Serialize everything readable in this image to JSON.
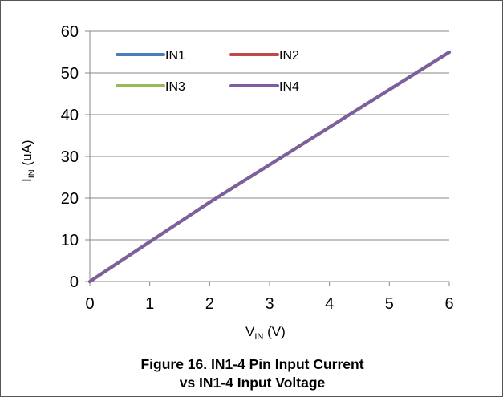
{
  "caption": {
    "line1": "Figure 16. IN1-4 Pin Input Current",
    "line2": "vs IN1-4 Input Voltage"
  },
  "chart_data": {
    "type": "line",
    "xlabel": {
      "main": "V",
      "sub": "IN",
      "unit": " (V)"
    },
    "ylabel": {
      "main": "I",
      "sub": "IN",
      "unit": " (uA)"
    },
    "xlim": [
      0,
      6
    ],
    "ylim": [
      0,
      60
    ],
    "xticks": [
      0,
      1,
      2,
      3,
      4,
      5,
      6
    ],
    "yticks": [
      0,
      10,
      20,
      30,
      40,
      50,
      60
    ],
    "grid": "y-major",
    "legend_position": "top-left",
    "series": [
      {
        "name": "IN1",
        "color": "#4a7ebb",
        "x": [
          0,
          1,
          2,
          3,
          4,
          5,
          6
        ],
        "y": [
          0,
          9.5,
          19,
          28,
          37,
          46,
          55
        ]
      },
      {
        "name": "IN2",
        "color": "#be4b48",
        "x": [
          0,
          1,
          2,
          3,
          4,
          5,
          6
        ],
        "y": [
          0,
          9.5,
          19,
          28,
          37,
          46,
          55
        ]
      },
      {
        "name": "IN3",
        "color": "#98b954",
        "x": [
          0,
          1,
          2,
          3,
          4,
          5,
          6
        ],
        "y": [
          0,
          9.5,
          19,
          28,
          37,
          46,
          55
        ]
      },
      {
        "name": "IN4",
        "color": "#7d5fa0",
        "x": [
          0,
          1,
          2,
          3,
          4,
          5,
          6
        ],
        "y": [
          0,
          9.5,
          19,
          28,
          37,
          46,
          55
        ]
      }
    ]
  }
}
